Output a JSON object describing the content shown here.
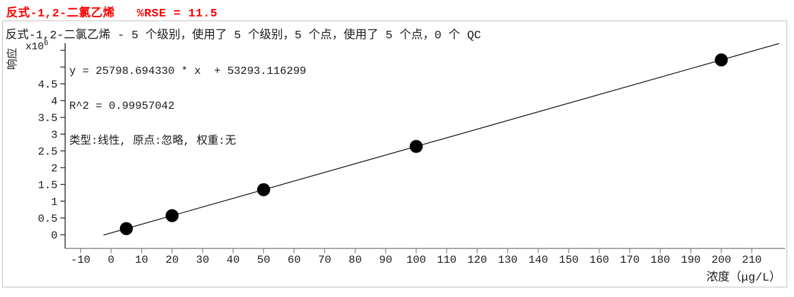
{
  "header": {
    "title": "反式-1,2-二氯乙烯   %RSE = 11.5"
  },
  "panel": {
    "subtitle": "反式-1,2-二氯乙烯 - 5 个级别，使用了 5 个级别，5 个点，使用了 5 个点，0 个 QC",
    "equation_line1": "y = 25798.694330 * x  + 53293.116299",
    "equation_line2": "R^2 = 0.99957042",
    "equation_line3": "类型:线性, 原点:忽略, 权重:无",
    "y_axis_title": "响应",
    "y_multiplier_base": "x10",
    "y_multiplier_exp": "6",
    "x_axis_title": "浓度（μg/L）"
  },
  "chart_data": {
    "type": "scatter",
    "title": "反式-1,2-二氯乙烯   %RSE = 11.5",
    "subtitle": "反式-1,2-二氯乙烯 - 5 个级别，使用了 5 个级别，5 个点，使用了 5 个点，0 个 QC",
    "xlabel": "浓度（μg/L）",
    "ylabel": "响应",
    "y_unit_multiplier": 1000000,
    "x_ticks": [
      -10,
      0,
      10,
      20,
      30,
      40,
      50,
      60,
      70,
      80,
      90,
      100,
      110,
      120,
      130,
      140,
      150,
      160,
      170,
      180,
      190,
      200,
      210
    ],
    "y_ticks_labeled": [
      0,
      0.5,
      1,
      1.5,
      2,
      2.5,
      3,
      3.5,
      4,
      4.5
    ],
    "y_ticks_unlabeled": [
      5,
      5.5
    ],
    "points": [
      {
        "x": 5,
        "y_e6": 0.182
      },
      {
        "x": 20,
        "y_e6": 0.569
      },
      {
        "x": 50,
        "y_e6": 1.343
      },
      {
        "x": 100,
        "y_e6": 2.633
      },
      {
        "x": 200,
        "y_e6": 5.213
      }
    ],
    "fit": {
      "slope": 25798.69433,
      "intercept": 53293.116299,
      "r2": 0.99957042,
      "rse_percent": 11.5,
      "curve_type": "线性",
      "origin": "忽略",
      "weight": "无",
      "line_x_range": [
        -2.5,
        219
      ]
    },
    "legend": null,
    "grid": false
  },
  "colors": {
    "title_red": "#ff0000",
    "panel_border": "#c3c3c3",
    "y_axis": "#2a2a2a",
    "x_axis": "#8a8a8a",
    "point_fill": "#000000",
    "trend_line": "#1a1a1a",
    "text": "#1a1a1a"
  }
}
